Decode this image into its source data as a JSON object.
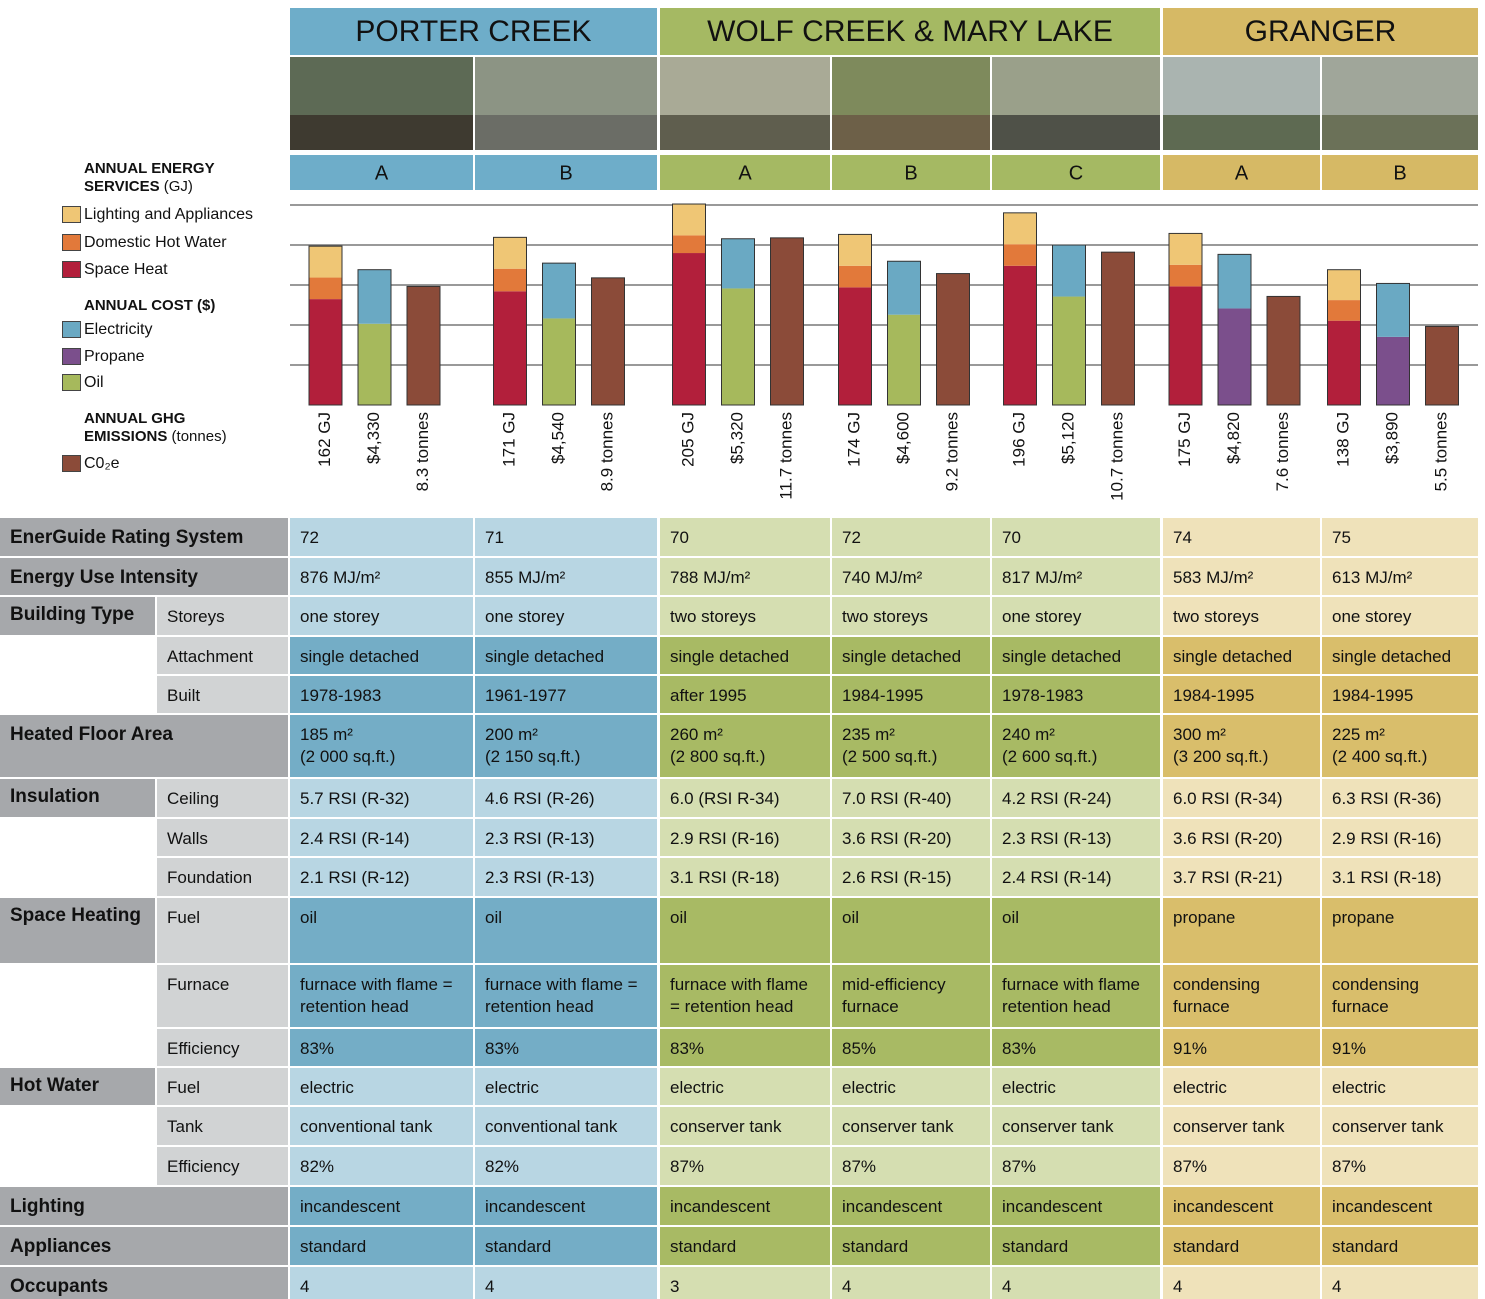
{
  "header": {
    "neighbourhoods": [
      "PORTER CREEK",
      "WOLF CREEK & MARY LAKE",
      "GRANGER"
    ]
  },
  "chart_data": [
    {
      "type": "bar",
      "stacked": true,
      "title": "ANNUAL ENERGY SERVICES",
      "unit": "(GJ)",
      "categories": [
        "A",
        "B",
        "A",
        "B",
        "C",
        "A",
        "B"
      ],
      "ylim": [
        0,
        204
      ],
      "values": [
        162,
        171,
        205,
        174,
        196,
        175,
        138
      ],
      "value_labels": [
        "162 GJ",
        "171 GJ",
        "205 GJ",
        "174 GJ",
        "196 GJ",
        "175 GJ",
        "138 GJ"
      ],
      "series": [
        {
          "name": "Space Heat",
          "color": "#b21f3b",
          "values": [
            108,
            116,
            155,
            120,
            142,
            121,
            86
          ]
        },
        {
          "name": "Domestic Hot Water",
          "color": "#e2793a",
          "values": [
            22,
            23,
            18,
            22,
            22,
            22,
            21
          ]
        },
        {
          "name": "Lighting and Appliances",
          "color": "#efc675",
          "values": [
            32,
            32,
            32,
            32,
            32,
            32,
            31
          ]
        }
      ]
    },
    {
      "type": "bar",
      "stacked": true,
      "title": "ANNUAL COST ($)",
      "ylim": [
        0,
        6400
      ],
      "values": [
        4330,
        4540,
        5320,
        4600,
        5120,
        4820,
        3890
      ],
      "value_labels": [
        "$4,330",
        "$4,540",
        "$5,320",
        "$4,600",
        "$5,120",
        "$4,820",
        "$3,890"
      ],
      "series": [
        {
          "name": "Oil",
          "color": "#a6b95c",
          "values": [
            2600,
            2770,
            3730,
            2890,
            3470,
            null,
            null
          ]
        },
        {
          "name": "Propane",
          "color": "#7b4f8c",
          "values": [
            null,
            null,
            null,
            null,
            null,
            3090,
            2180
          ]
        },
        {
          "name": "Electricity",
          "color": "#6aa9c3",
          "values": [
            1730,
            1770,
            1590,
            1710,
            1650,
            1730,
            1710
          ]
        }
      ]
    },
    {
      "type": "bar",
      "stacked": false,
      "title": "ANNUAL GHG EMISSIONS",
      "unit": "(tonnes)",
      "name": "C0₂e",
      "color": "#8b4b39",
      "ylim": [
        0,
        14
      ],
      "values": [
        8.3,
        8.9,
        11.7,
        9.2,
        10.7,
        7.6,
        5.5
      ],
      "value_labels": [
        "8.3 tonnes",
        "8.9 tonnes",
        "11.7 tonnes",
        "9.2 tonnes",
        "10.7 tonnes",
        "7.6 tonnes",
        "5.5 tonnes"
      ]
    }
  ],
  "table": {
    "rows": [
      {
        "label": "EnerGuide Rating System",
        "cells": [
          72,
          71,
          70,
          72,
          70,
          74,
          75
        ]
      },
      {
        "label": "Energy Use Intensity",
        "cells": [
          "876 MJ/m²",
          "855 MJ/m²",
          "788 MJ/m²",
          "740 MJ/m²",
          "817 MJ/m²",
          "583 MJ/m²",
          "613 MJ/m²"
        ]
      },
      {
        "label": "Building Type",
        "sublabel": "Storeys",
        "cells": [
          "one storey",
          "one storey",
          "two storeys",
          "two storeys",
          "one storey",
          "two storeys",
          "one storey"
        ]
      },
      {
        "sublabel": "Attachment",
        "cells": [
          "single detached",
          "single detached",
          "single detached",
          "single detached",
          "single detached",
          "single detached",
          "single detached"
        ]
      },
      {
        "sublabel": "Built",
        "cells": [
          "1978-1983",
          "1961-1977",
          "after 1995",
          "1984-1995",
          "1978-1983",
          "1984-1995",
          "1984-1995"
        ]
      },
      {
        "label": "Heated Floor Area",
        "cells": [
          "185 m²\n(2 000 sq.ft.)",
          "200 m²\n(2 150 sq.ft.)",
          "260 m²\n(2 800 sq.ft.)",
          "235 m²\n(2 500 sq.ft.)",
          "240 m²\n(2 600 sq.ft.)",
          "300 m²\n(3 200 sq.ft.)",
          "225 m²\n(2 400 sq.ft.)"
        ]
      },
      {
        "label": "Insulation",
        "sublabel": "Ceiling",
        "cells": [
          "5.7 RSI (R-32)",
          "4.6 RSI (R-26)",
          "6.0 (RSI R-34)",
          "7.0 RSI (R-40)",
          "4.2 RSI (R-24)",
          "6.0 RSI (R-34)",
          "6.3 RSI (R-36)"
        ]
      },
      {
        "sublabel": "Walls",
        "cells": [
          "2.4 RSI (R-14)",
          "2.3 RSI (R-13)",
          "2.9 RSI (R-16)",
          "3.6 RSI (R-20)",
          "2.3 RSI (R-13)",
          "3.6 RSI (R-20)",
          "2.9 RSI (R-16)"
        ]
      },
      {
        "sublabel": "Foundation",
        "cells": [
          "2.1 RSI (R-12)",
          "2.3 RSI (R-13)",
          "3.1 RSI (R-18)",
          "2.6 RSI (R-15)",
          "2.4 RSI (R-14)",
          "3.7 RSI (R-21)",
          "3.1 RSI (R-18)"
        ]
      },
      {
        "label": "Space Heating",
        "sublabel": "Fuel",
        "cells": [
          "oil",
          "oil",
          "oil",
          "oil",
          "oil",
          "propane",
          "propane"
        ]
      },
      {
        "sublabel": "Furnace",
        "cells": [
          "furnace with flame = retention head",
          "furnace with flame = retention head",
          "furnace with flame = retention head",
          "mid-efficiency furnace",
          "furnace with flame retention head",
          "condensing furnace",
          "condensing furnace"
        ]
      },
      {
        "sublabel": "Efficiency",
        "cells": [
          "83%",
          "83%",
          "83%",
          "85%",
          "83%",
          "91%",
          "91%"
        ]
      },
      {
        "label": "Hot Water",
        "sublabel": "Fuel",
        "cells": [
          "electric",
          "electric",
          "electric",
          "electric",
          "electric",
          "electric",
          "electric"
        ]
      },
      {
        "sublabel": "Tank",
        "cells": [
          "conventional tank",
          "conventional tank",
          "conserver tank",
          "conserver tank",
          "conserver tank",
          "conserver tank",
          "conserver tank"
        ]
      },
      {
        "sublabel": "Efficiency",
        "cells": [
          "82%",
          "82%",
          "87%",
          "87%",
          "87%",
          "87%",
          "87%"
        ]
      },
      {
        "label": "Lighting",
        "cells": [
          "incandescent",
          "incandescent",
          "incandescent",
          "incandescent",
          "incandescent",
          "incandescent",
          "incandescent"
        ]
      },
      {
        "label": "Appliances",
        "cells": [
          "standard",
          "standard",
          "standard",
          "standard",
          "standard",
          "standard",
          "standard"
        ]
      },
      {
        "label": "Occupants",
        "cells": [
          4,
          4,
          3,
          4,
          4,
          4,
          4
        ]
      }
    ]
  }
}
